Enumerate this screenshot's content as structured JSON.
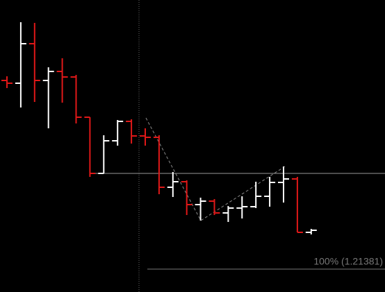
{
  "chart_data": {
    "type": "ohlc",
    "annotation": "100% (1.21381)",
    "ylim": [
      1.21315,
      1.22157
    ],
    "up_color": "#ffffff",
    "down_color": "#e01818",
    "open": [
      1.21925,
      1.21917,
      1.22031,
      1.21925,
      1.21951,
      1.21935,
      1.21819,
      1.21657,
      1.21751,
      1.21807,
      1.21765,
      1.21761,
      1.21617,
      1.21633,
      1.21567,
      1.21577,
      1.21543,
      1.21557,
      1.21561,
      1.21591,
      1.21631,
      1.21641,
      1.21487
    ],
    "high": [
      1.21937,
      1.22093,
      1.22091,
      1.21963,
      1.21989,
      1.21941,
      1.21819,
      1.21767,
      1.21811,
      1.21813,
      1.21787,
      1.21767,
      1.21661,
      1.21637,
      1.21587,
      1.21583,
      1.21563,
      1.21591,
      1.21633,
      1.21647,
      1.21677,
      1.21647,
      1.21497
    ],
    "low": [
      1.21903,
      1.21847,
      1.21863,
      1.21787,
      1.21861,
      1.21801,
      1.21647,
      1.21657,
      1.21737,
      1.21743,
      1.21737,
      1.21597,
      1.21589,
      1.21537,
      1.21521,
      1.21537,
      1.21517,
      1.21527,
      1.21557,
      1.21561,
      1.21573,
      1.21487,
      1.21481
    ],
    "close": [
      1.21917,
      1.22031,
      1.21925,
      1.21951,
      1.21935,
      1.21819,
      1.21657,
      1.21751,
      1.21807,
      1.21765,
      1.21761,
      1.21617,
      1.21633,
      1.21567,
      1.21577,
      1.21543,
      1.21557,
      1.21561,
      1.21591,
      1.21631,
      1.21641,
      1.21487,
      1.21493
    ]
  }
}
